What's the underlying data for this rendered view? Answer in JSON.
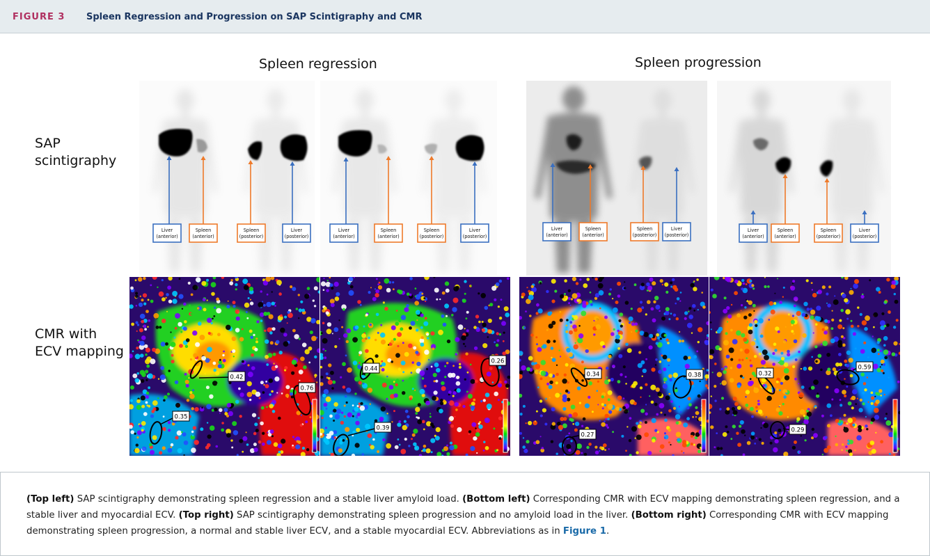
{
  "header": {
    "figure_label": "FIGURE 3",
    "title": "Spleen Regression and Progression on SAP Scintigraphy and CMR"
  },
  "groups": {
    "left_title": "Spleen regression",
    "right_title": "Spleen progression"
  },
  "rows": {
    "scintigraphy_line1": "SAP",
    "scintigraphy_line2": "scintigraphy",
    "cmr_line1": "CMR with",
    "cmr_line2": "ECV mapping"
  },
  "scan_labels": {
    "liver_anterior": [
      "Liver",
      "(anterior)"
    ],
    "spleen_anterior": [
      "Spleen",
      "(anterior)"
    ],
    "spleen_posterior": [
      "Spleen",
      "(posterior)"
    ],
    "liver_posterior": [
      "Liver",
      "(posterior)"
    ]
  },
  "colors": {
    "liver_box": "#3a6fc0",
    "spleen_box": "#ee7a2a",
    "figure_label": "#b03060",
    "title": "#1a3560",
    "link": "#1a6aa8"
  },
  "cmr_values": {
    "panel1": [
      "0.42",
      "0.76",
      "0.35"
    ],
    "panel2": [
      "0.44",
      "0.26",
      "0.39"
    ],
    "panel3": [
      "0.34",
      "0.38",
      "0.27"
    ],
    "panel4": [
      "0.32",
      "0.59",
      "0.29"
    ]
  },
  "caption": {
    "p1_bold": "(Top left)",
    "p1_text": " SAP scintigraphy demonstrating spleen regression and a stable liver amyloid load. ",
    "p2_bold": "(Bottom left)",
    "p2_text": " Corresponding CMR with ECV mapping demonstrating spleen regression, and a stable liver and myocardial ECV. ",
    "p3_bold": "(Top right)",
    "p3_text": " SAP scintigraphy demonstrating spleen progression and no amyloid load in the liver. ",
    "p4_bold": "(Bottom right)",
    "p4_text": " Corresponding CMR with ECV mapping demonstrating spleen progression, a normal and stable liver ECV, and a stable myocardial ECV. Abbreviations as in ",
    "link": "Figure 1",
    "end": "."
  }
}
